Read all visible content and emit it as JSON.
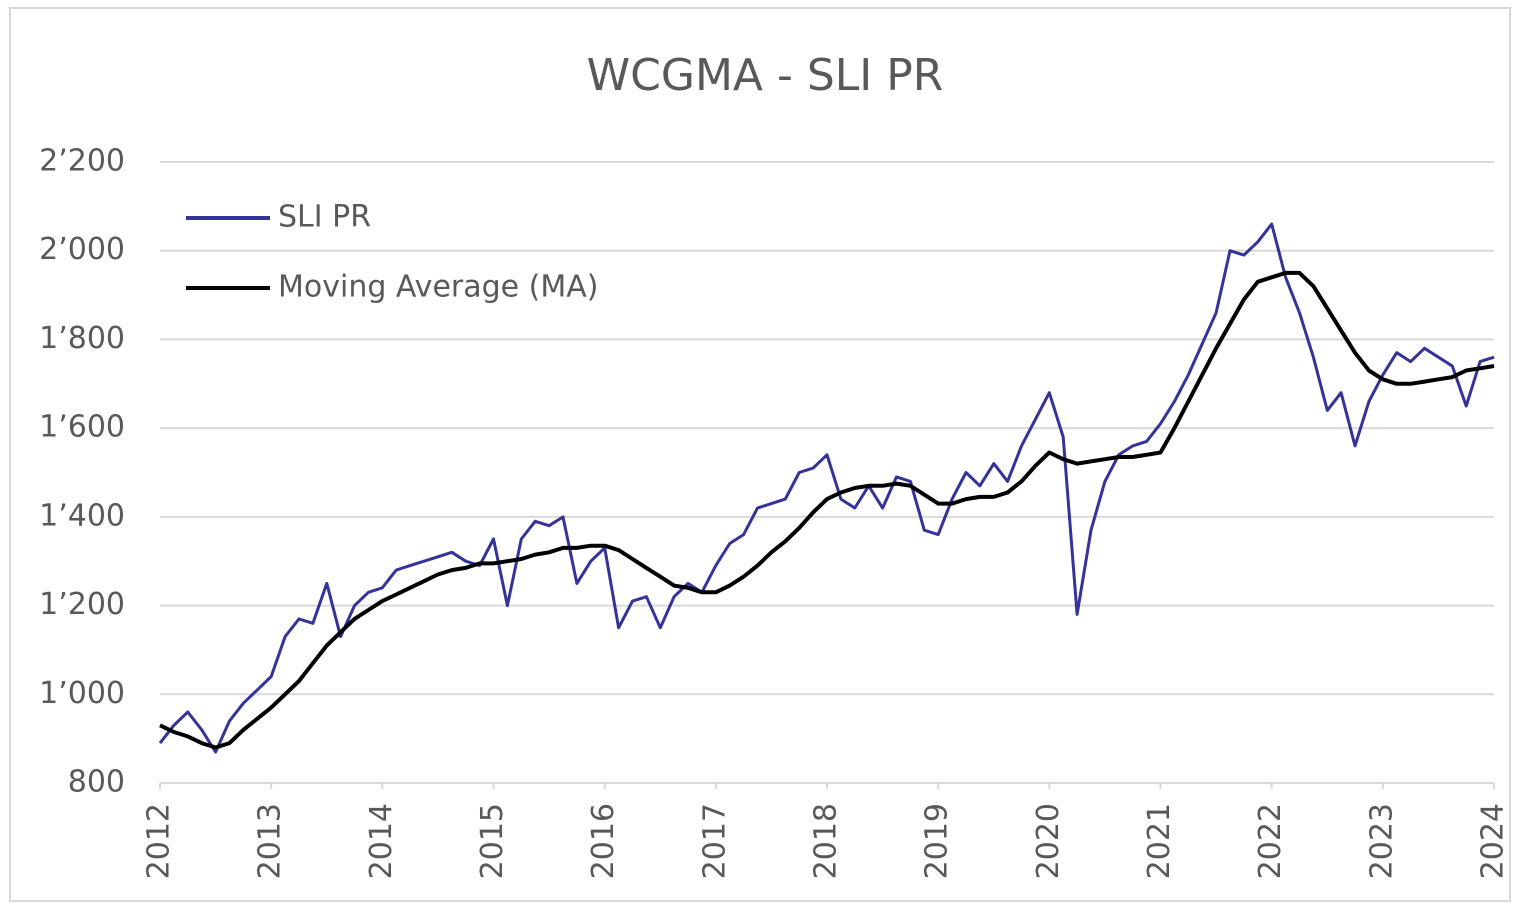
{
  "chart_data": {
    "type": "line",
    "title": "WCGMA - SLI PR",
    "x": [
      2012,
      2012.125,
      2012.25,
      2012.375,
      2012.5,
      2012.625,
      2012.75,
      2012.875,
      2013,
      2013.125,
      2013.25,
      2013.375,
      2013.5,
      2013.625,
      2013.75,
      2013.875,
      2014,
      2014.125,
      2014.25,
      2014.375,
      2014.5,
      2014.625,
      2014.75,
      2014.875,
      2015,
      2015.125,
      2015.25,
      2015.375,
      2015.5,
      2015.625,
      2015.75,
      2015.875,
      2016,
      2016.125,
      2016.25,
      2016.375,
      2016.5,
      2016.625,
      2016.75,
      2016.875,
      2017,
      2017.125,
      2017.25,
      2017.375,
      2017.5,
      2017.625,
      2017.75,
      2017.875,
      2018,
      2018.125,
      2018.25,
      2018.375,
      2018.5,
      2018.625,
      2018.75,
      2018.875,
      2019,
      2019.125,
      2019.25,
      2019.375,
      2019.5,
      2019.625,
      2019.75,
      2019.875,
      2020,
      2020.125,
      2020.25,
      2020.375,
      2020.5,
      2020.625,
      2020.75,
      2020.875,
      2021,
      2021.125,
      2021.25,
      2021.375,
      2021.5,
      2021.625,
      2021.75,
      2021.875,
      2022,
      2022.125,
      2022.25,
      2022.375,
      2022.5,
      2022.625,
      2022.75,
      2022.875,
      2023,
      2023.125,
      2023.25,
      2023.375,
      2023.5,
      2023.625,
      2023.75,
      2023.875,
      2024
    ],
    "series": [
      {
        "name": "SLI PR",
        "color": "#333399",
        "values": [
          890,
          930,
          960,
          920,
          870,
          940,
          980,
          1010,
          1040,
          1130,
          1170,
          1160,
          1250,
          1130,
          1200,
          1230,
          1240,
          1280,
          1290,
          1300,
          1310,
          1320,
          1300,
          1290,
          1350,
          1200,
          1350,
          1390,
          1380,
          1400,
          1250,
          1300,
          1330,
          1150,
          1210,
          1220,
          1150,
          1220,
          1250,
          1230,
          1290,
          1340,
          1360,
          1420,
          1430,
          1440,
          1500,
          1510,
          1540,
          1440,
          1420,
          1470,
          1420,
          1490,
          1480,
          1370,
          1360,
          1440,
          1500,
          1470,
          1520,
          1480,
          1560,
          1620,
          1680,
          1580,
          1180,
          1370,
          1480,
          1540,
          1560,
          1570,
          1610,
          1660,
          1720,
          1790,
          1860,
          2000,
          1990,
          2020,
          2060,
          1940,
          1860,
          1760,
          1640,
          1680,
          1560,
          1660,
          1720,
          1770,
          1750,
          1780,
          1760,
          1740,
          1650,
          1750,
          1760
        ]
      },
      {
        "name": "Moving Average (MA)",
        "color": "#000000",
        "values": [
          930,
          915,
          905,
          890,
          880,
          890,
          920,
          945,
          970,
          1000,
          1030,
          1070,
          1110,
          1140,
          1170,
          1190,
          1210,
          1225,
          1240,
          1255,
          1270,
          1280,
          1285,
          1295,
          1295,
          1300,
          1305,
          1315,
          1320,
          1330,
          1330,
          1335,
          1335,
          1325,
          1305,
          1285,
          1265,
          1245,
          1240,
          1230,
          1230,
          1245,
          1265,
          1290,
          1320,
          1345,
          1375,
          1410,
          1440,
          1455,
          1465,
          1470,
          1470,
          1475,
          1470,
          1450,
          1430,
          1430,
          1440,
          1445,
          1445,
          1455,
          1480,
          1515,
          1545,
          1530,
          1520,
          1525,
          1530,
          1535,
          1535,
          1540,
          1545,
          1600,
          1660,
          1720,
          1780,
          1835,
          1890,
          1930,
          1940,
          1950,
          1950,
          1920,
          1870,
          1820,
          1770,
          1730,
          1710,
          1700,
          1700,
          1705,
          1710,
          1715,
          1730,
          1735,
          1740
        ]
      }
    ],
    "xlim": [
      2012,
      2024
    ],
    "xticks": [
      2012,
      2013,
      2014,
      2015,
      2016,
      2017,
      2018,
      2019,
      2020,
      2021,
      2022,
      2023,
      2024
    ],
    "ylim": [
      800,
      2200
    ],
    "yticks": [
      800,
      {
        "value": 1000,
        "label": "1’000"
      },
      {
        "value": 1200,
        "label": "1’200"
      },
      {
        "value": 1400,
        "label": "1’400"
      },
      {
        "value": 1600,
        "label": "1’600"
      },
      {
        "value": 1800,
        "label": "1’800"
      },
      {
        "value": 2000,
        "label": "2’000"
      },
      {
        "value": 2200,
        "label": "2’200"
      }
    ],
    "grid": true,
    "legend": "upper left"
  }
}
